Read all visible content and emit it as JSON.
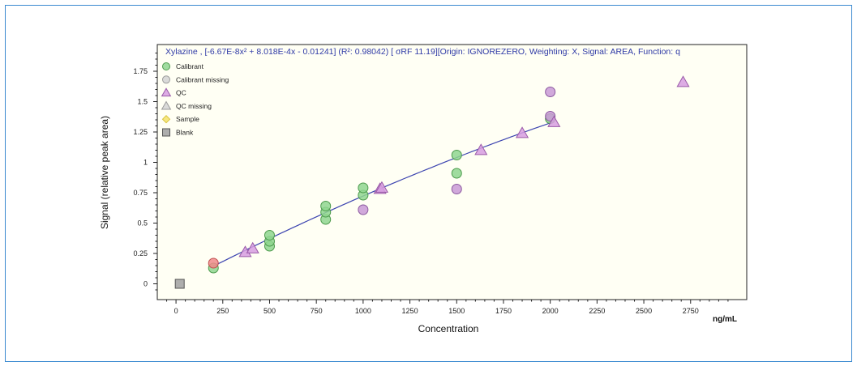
{
  "chart_data": {
    "type": "scatter",
    "title": "Xylazine , [-6.67E-8x² + 8.018E-4x - 0.01241] (R²: 0.98042)  [ σRF 11.19][Origin: IGNOREZERO, Weighting: X, Signal: AREA, Function: q",
    "xlabel": "Concentration",
    "xunit": "ng/mL",
    "ylabel": "Signal (relative peak area)",
    "xlim": [
      -100,
      3050
    ],
    "ylim": [
      -0.13,
      1.97
    ],
    "x_ticks": [
      0,
      250,
      500,
      750,
      1000,
      1250,
      1500,
      1750,
      2000,
      2250,
      2500,
      2750
    ],
    "x_tick_labels": [
      "0",
      "250",
      "500",
      "750",
      "1000",
      "1250",
      "1500",
      "1750",
      "2000",
      "2250",
      "2500",
      "2750"
    ],
    "y_ticks": [
      0,
      0.25,
      0.5,
      0.75,
      1,
      1.25,
      1.5,
      1.75
    ],
    "y_tick_labels": [
      "0",
      "0.25",
      "0.5",
      "0.75",
      "1",
      "1.25",
      "1.5",
      "1.75"
    ],
    "legend_position": "top-left",
    "legend": [
      {
        "name": "Calibrant",
        "shape": "circle",
        "color": "#8fd68f",
        "stroke": "#4c9a4c"
      },
      {
        "name": "Calibrant missing",
        "shape": "circle",
        "color": "#d4d4d4",
        "stroke": "#9a9a9a"
      },
      {
        "name": "QC",
        "shape": "triangle",
        "color": "#d79ee0",
        "stroke": "#9a5aa8"
      },
      {
        "name": "QC missing",
        "shape": "triangle",
        "color": "#d4d4d4",
        "stroke": "#9a9a9a"
      },
      {
        "name": "Sample",
        "shape": "diamond",
        "color": "#f5e36a",
        "stroke": "#d8c23a"
      },
      {
        "name": "Blank",
        "shape": "square",
        "color": "#a0a0a0",
        "stroke": "#555555"
      }
    ],
    "fit": {
      "a": -6.67e-08,
      "b": 0.0008018,
      "c": -0.01241,
      "x_range": [
        200,
        2000
      ],
      "color": "#3c44b0"
    },
    "series": [
      {
        "name": "Calibrant",
        "shape": "circle",
        "points": [
          [
            200,
            0.13
          ],
          [
            500,
            0.31
          ],
          [
            500,
            0.35
          ],
          [
            500,
            0.4
          ],
          [
            800,
            0.53
          ],
          [
            800,
            0.59
          ],
          [
            800,
            0.64
          ],
          [
            1000,
            0.73
          ],
          [
            1000,
            0.79
          ],
          [
            1500,
            0.91
          ],
          [
            1500,
            1.06
          ],
          [
            2000,
            1.36
          ]
        ]
      },
      {
        "name": "QC circles",
        "shape": "circle",
        "color": "#c99ad6",
        "stroke": "#8c5aa0",
        "points": [
          [
            1000,
            0.61
          ],
          [
            1500,
            0.78
          ],
          [
            2000,
            1.38
          ],
          [
            2000,
            1.58
          ]
        ]
      },
      {
        "name": "Excluded calibrant",
        "shape": "circle",
        "color": "#f08a8a",
        "stroke": "#c05050",
        "points": [
          [
            200,
            0.17
          ]
        ]
      },
      {
        "name": "QC",
        "shape": "triangle",
        "points": [
          [
            370,
            0.26
          ],
          [
            410,
            0.29
          ],
          [
            1090,
            0.78
          ],
          [
            1100,
            0.79
          ],
          [
            1630,
            1.1
          ],
          [
            1850,
            1.24
          ],
          [
            2020,
            1.33
          ],
          [
            2710,
            1.66
          ]
        ]
      },
      {
        "name": "Blank",
        "shape": "square",
        "points": [
          [
            20,
            0.0
          ]
        ]
      }
    ]
  }
}
